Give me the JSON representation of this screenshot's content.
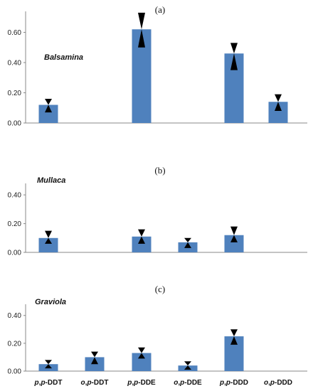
{
  "chart_data": [
    {
      "type": "bar",
      "panel_label": "(a)",
      "plant": "Balsamina",
      "categories": [
        "p,p-DDT",
        "o,p-DDT",
        "p,p-DDE",
        "o,p-DDE",
        "p,p-DDD",
        "o,p-DDD"
      ],
      "values": [
        0.12,
        0,
        0.62,
        0,
        0.46,
        0.14
      ],
      "error_low": [
        0.07,
        null,
        0.5,
        null,
        0.35,
        0.08
      ],
      "error_high": [
        0.16,
        null,
        0.73,
        null,
        0.53,
        0.19
      ],
      "yticks": [
        "0.00",
        "0.20",
        "0.40",
        "0.60"
      ],
      "ylim": [
        0,
        0.72
      ],
      "bar_color": "#4f81bd"
    },
    {
      "type": "bar",
      "panel_label": "(b)",
      "plant": "Mullaca",
      "categories": [
        "p,p-DDT",
        "o,p-DDT",
        "p,p-DDE",
        "o,p-DDE",
        "p,p-DDD",
        "o,p-DDD"
      ],
      "values": [
        0.1,
        0,
        0.11,
        0.07,
        0.12,
        0
      ],
      "error_low": [
        0.06,
        null,
        0.06,
        0.03,
        0.07,
        null
      ],
      "error_high": [
        0.15,
        null,
        0.16,
        0.1,
        0.18,
        null
      ],
      "yticks": [
        "0.00",
        "0.20",
        "0.40"
      ],
      "ylim": [
        0,
        0.46
      ],
      "bar_color": "#4f81bd"
    },
    {
      "type": "bar",
      "panel_label": "(c)",
      "plant": "Graviola",
      "categories": [
        "p,p-DDT",
        "o,p-DDT",
        "p,p-DDE",
        "o,p-DDE",
        "p,p-DDD",
        "o,p-DDD"
      ],
      "values": [
        0.05,
        0.1,
        0.13,
        0.04,
        0.25,
        0
      ],
      "error_low": [
        0.02,
        0.05,
        0.09,
        0.01,
        0.19,
        null
      ],
      "error_high": [
        0.08,
        0.14,
        0.17,
        0.07,
        0.3,
        null
      ],
      "yticks": [
        "0.00",
        "0.20",
        "0.40"
      ],
      "ylim": [
        0,
        0.46
      ],
      "bar_color": "#4f81bd"
    }
  ],
  "x_labels": [
    {
      "italic": "p",
      "sep": ",",
      "italic2": "p",
      "rest": "-DDT"
    },
    {
      "italic": "o",
      "sep": ",",
      "italic2": "p",
      "rest": "-DDT"
    },
    {
      "italic": "p",
      "sep": ",",
      "italic2": "p",
      "rest": "-DDE"
    },
    {
      "italic": "o",
      "sep": ",",
      "italic2": "p",
      "rest": "-DDE"
    },
    {
      "italic": "p",
      "sep": ",",
      "italic2": "p",
      "rest": "-DDD"
    },
    {
      "italic": "o",
      "sep": ",",
      "italic2": "p",
      "rest": "-DDD"
    }
  ]
}
